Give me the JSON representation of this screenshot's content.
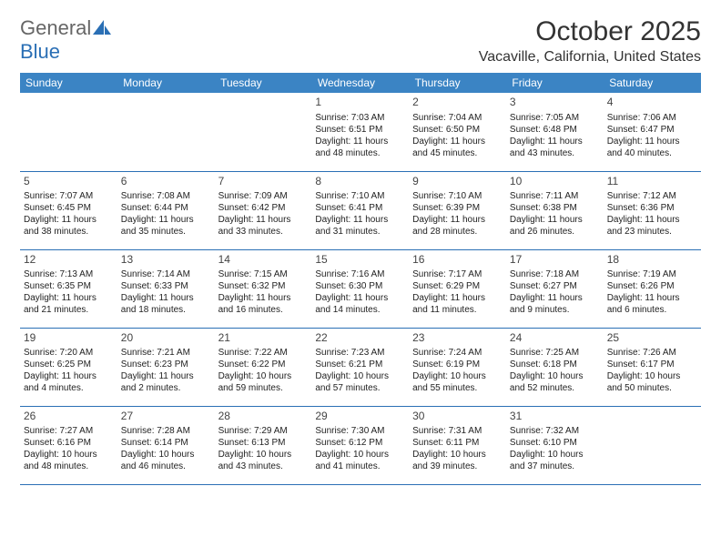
{
  "logo": {
    "part1": "General",
    "part2": "Blue"
  },
  "title": "October 2025",
  "location": "Vacaville, California, United States",
  "colors": {
    "header_bg": "#3b84c4",
    "header_text": "#ffffff",
    "border": "#2a6fb5",
    "text": "#222222",
    "logo_gray": "#666666",
    "logo_blue": "#2a6fb5",
    "background": "#ffffff"
  },
  "typography": {
    "title_fontsize": 30,
    "location_fontsize": 16,
    "dayheader_fontsize": 12,
    "daynum_fontsize": 12,
    "body_fontsize": 10
  },
  "day_headers": [
    "Sunday",
    "Monday",
    "Tuesday",
    "Wednesday",
    "Thursday",
    "Friday",
    "Saturday"
  ],
  "weeks": [
    [
      null,
      null,
      null,
      {
        "n": "1",
        "sr": "Sunrise: 7:03 AM",
        "ss": "Sunset: 6:51 PM",
        "d1": "Daylight: 11 hours",
        "d2": "and 48 minutes."
      },
      {
        "n": "2",
        "sr": "Sunrise: 7:04 AM",
        "ss": "Sunset: 6:50 PM",
        "d1": "Daylight: 11 hours",
        "d2": "and 45 minutes."
      },
      {
        "n": "3",
        "sr": "Sunrise: 7:05 AM",
        "ss": "Sunset: 6:48 PM",
        "d1": "Daylight: 11 hours",
        "d2": "and 43 minutes."
      },
      {
        "n": "4",
        "sr": "Sunrise: 7:06 AM",
        "ss": "Sunset: 6:47 PM",
        "d1": "Daylight: 11 hours",
        "d2": "and 40 minutes."
      }
    ],
    [
      {
        "n": "5",
        "sr": "Sunrise: 7:07 AM",
        "ss": "Sunset: 6:45 PM",
        "d1": "Daylight: 11 hours",
        "d2": "and 38 minutes."
      },
      {
        "n": "6",
        "sr": "Sunrise: 7:08 AM",
        "ss": "Sunset: 6:44 PM",
        "d1": "Daylight: 11 hours",
        "d2": "and 35 minutes."
      },
      {
        "n": "7",
        "sr": "Sunrise: 7:09 AM",
        "ss": "Sunset: 6:42 PM",
        "d1": "Daylight: 11 hours",
        "d2": "and 33 minutes."
      },
      {
        "n": "8",
        "sr": "Sunrise: 7:10 AM",
        "ss": "Sunset: 6:41 PM",
        "d1": "Daylight: 11 hours",
        "d2": "and 31 minutes."
      },
      {
        "n": "9",
        "sr": "Sunrise: 7:10 AM",
        "ss": "Sunset: 6:39 PM",
        "d1": "Daylight: 11 hours",
        "d2": "and 28 minutes."
      },
      {
        "n": "10",
        "sr": "Sunrise: 7:11 AM",
        "ss": "Sunset: 6:38 PM",
        "d1": "Daylight: 11 hours",
        "d2": "and 26 minutes."
      },
      {
        "n": "11",
        "sr": "Sunrise: 7:12 AM",
        "ss": "Sunset: 6:36 PM",
        "d1": "Daylight: 11 hours",
        "d2": "and 23 minutes."
      }
    ],
    [
      {
        "n": "12",
        "sr": "Sunrise: 7:13 AM",
        "ss": "Sunset: 6:35 PM",
        "d1": "Daylight: 11 hours",
        "d2": "and 21 minutes."
      },
      {
        "n": "13",
        "sr": "Sunrise: 7:14 AM",
        "ss": "Sunset: 6:33 PM",
        "d1": "Daylight: 11 hours",
        "d2": "and 18 minutes."
      },
      {
        "n": "14",
        "sr": "Sunrise: 7:15 AM",
        "ss": "Sunset: 6:32 PM",
        "d1": "Daylight: 11 hours",
        "d2": "and 16 minutes."
      },
      {
        "n": "15",
        "sr": "Sunrise: 7:16 AM",
        "ss": "Sunset: 6:30 PM",
        "d1": "Daylight: 11 hours",
        "d2": "and 14 minutes."
      },
      {
        "n": "16",
        "sr": "Sunrise: 7:17 AM",
        "ss": "Sunset: 6:29 PM",
        "d1": "Daylight: 11 hours",
        "d2": "and 11 minutes."
      },
      {
        "n": "17",
        "sr": "Sunrise: 7:18 AM",
        "ss": "Sunset: 6:27 PM",
        "d1": "Daylight: 11 hours",
        "d2": "and 9 minutes."
      },
      {
        "n": "18",
        "sr": "Sunrise: 7:19 AM",
        "ss": "Sunset: 6:26 PM",
        "d1": "Daylight: 11 hours",
        "d2": "and 6 minutes."
      }
    ],
    [
      {
        "n": "19",
        "sr": "Sunrise: 7:20 AM",
        "ss": "Sunset: 6:25 PM",
        "d1": "Daylight: 11 hours",
        "d2": "and 4 minutes."
      },
      {
        "n": "20",
        "sr": "Sunrise: 7:21 AM",
        "ss": "Sunset: 6:23 PM",
        "d1": "Daylight: 11 hours",
        "d2": "and 2 minutes."
      },
      {
        "n": "21",
        "sr": "Sunrise: 7:22 AM",
        "ss": "Sunset: 6:22 PM",
        "d1": "Daylight: 10 hours",
        "d2": "and 59 minutes."
      },
      {
        "n": "22",
        "sr": "Sunrise: 7:23 AM",
        "ss": "Sunset: 6:21 PM",
        "d1": "Daylight: 10 hours",
        "d2": "and 57 minutes."
      },
      {
        "n": "23",
        "sr": "Sunrise: 7:24 AM",
        "ss": "Sunset: 6:19 PM",
        "d1": "Daylight: 10 hours",
        "d2": "and 55 minutes."
      },
      {
        "n": "24",
        "sr": "Sunrise: 7:25 AM",
        "ss": "Sunset: 6:18 PM",
        "d1": "Daylight: 10 hours",
        "d2": "and 52 minutes."
      },
      {
        "n": "25",
        "sr": "Sunrise: 7:26 AM",
        "ss": "Sunset: 6:17 PM",
        "d1": "Daylight: 10 hours",
        "d2": "and 50 minutes."
      }
    ],
    [
      {
        "n": "26",
        "sr": "Sunrise: 7:27 AM",
        "ss": "Sunset: 6:16 PM",
        "d1": "Daylight: 10 hours",
        "d2": "and 48 minutes."
      },
      {
        "n": "27",
        "sr": "Sunrise: 7:28 AM",
        "ss": "Sunset: 6:14 PM",
        "d1": "Daylight: 10 hours",
        "d2": "and 46 minutes."
      },
      {
        "n": "28",
        "sr": "Sunrise: 7:29 AM",
        "ss": "Sunset: 6:13 PM",
        "d1": "Daylight: 10 hours",
        "d2": "and 43 minutes."
      },
      {
        "n": "29",
        "sr": "Sunrise: 7:30 AM",
        "ss": "Sunset: 6:12 PM",
        "d1": "Daylight: 10 hours",
        "d2": "and 41 minutes."
      },
      {
        "n": "30",
        "sr": "Sunrise: 7:31 AM",
        "ss": "Sunset: 6:11 PM",
        "d1": "Daylight: 10 hours",
        "d2": "and 39 minutes."
      },
      {
        "n": "31",
        "sr": "Sunrise: 7:32 AM",
        "ss": "Sunset: 6:10 PM",
        "d1": "Daylight: 10 hours",
        "d2": "and 37 minutes."
      },
      null
    ]
  ]
}
